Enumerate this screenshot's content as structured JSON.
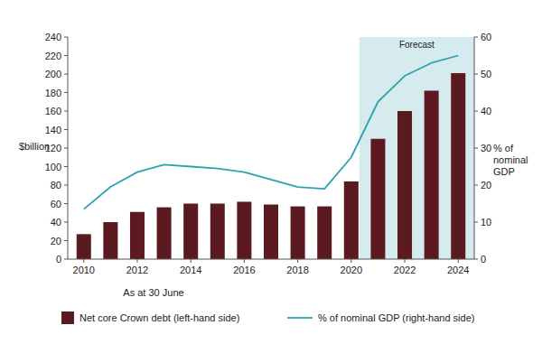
{
  "chart_data": {
    "type": "bar",
    "x_label": "As at 30 June",
    "y_label": "$billion",
    "y2_label": "% of nominal GDP",
    "x": [
      2010,
      2011,
      2012,
      2013,
      2014,
      2015,
      2016,
      2017,
      2018,
      2019,
      2020,
      2021,
      2022,
      2023,
      2024
    ],
    "xlim": [
      2009.4,
      2024.6
    ],
    "xticks": [
      2010,
      2012,
      2014,
      2016,
      2018,
      2020,
      2022,
      2024
    ],
    "ylim": [
      0,
      240
    ],
    "yticks": [
      0,
      20,
      40,
      60,
      80,
      100,
      120,
      140,
      160,
      180,
      200,
      220,
      240
    ],
    "y2lim": [
      0,
      60
    ],
    "y2ticks": [
      0,
      10,
      20,
      30,
      40,
      50,
      60
    ],
    "series": [
      {
        "name": "Net core Crown debt (left-hand side)",
        "type": "bar",
        "color": "#5a1a1f",
        "values": [
          27,
          40,
          51,
          56,
          60,
          60,
          62,
          59,
          57,
          57,
          84,
          130,
          160,
          182,
          201
        ]
      },
      {
        "name": "% of nominal GDP (right-hand side)",
        "type": "line",
        "axis": "y2",
        "color": "#2ea3b0",
        "values": [
          13.5,
          19.5,
          23.5,
          25.5,
          25,
          24.5,
          23.5,
          21.5,
          19.5,
          19,
          27.5,
          42.5,
          49.5,
          53,
          55
        ]
      }
    ],
    "annotations": [
      {
        "text": "Forecast",
        "x_range": [
          2020.3,
          2024.6
        ]
      }
    ],
    "grid": false,
    "legend": "bottom"
  }
}
